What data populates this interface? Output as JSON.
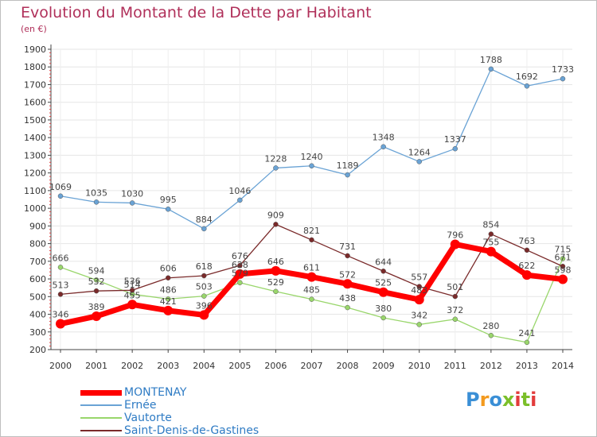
{
  "title": "Evolution du Montant de la Dette par Habitant",
  "subtitle": "(en €)",
  "brand": {
    "letters": [
      "P",
      "r",
      "o",
      "x",
      "i",
      "t",
      "i"
    ],
    "colors": [
      "#3a8fd6",
      "#f39a1e",
      "#3a8fd6",
      "#7bbf2a",
      "#e23b3b",
      "#7bbf2a",
      "#e23b3b"
    ]
  },
  "chart_data": {
    "type": "line",
    "title": "Evolution du Montant de la Dette par Habitant",
    "ylabel": "(en €)",
    "xlabel": "",
    "x": [
      "2000",
      "2001",
      "2002",
      "2003",
      "2004",
      "2005",
      "2006",
      "2007",
      "2008",
      "2009",
      "2010",
      "2011",
      "2012",
      "2013",
      "2014"
    ],
    "ylim": [
      200,
      1900
    ],
    "yticks": [
      "200",
      "300",
      "400",
      "500",
      "600",
      "700",
      "800",
      "900",
      "1000",
      "1100",
      "1200",
      "1300",
      "1400",
      "1500",
      "1600",
      "1700",
      "1800",
      "1900"
    ],
    "grid": true,
    "legend_position": "bottom-left",
    "series": [
      {
        "name": "MONTENAY",
        "color": "#ff0000",
        "values": [
          346,
          389,
          455,
          421,
          396,
          628,
          646,
          611,
          572,
          525,
          483,
          796,
          755,
          622,
          598
        ]
      },
      {
        "name": "Ernée",
        "color": "#6aa3d5",
        "values": [
          1069,
          1035,
          1030,
          995,
          884,
          1046,
          1228,
          1240,
          1189,
          1348,
          1264,
          1337,
          1788,
          1692,
          1733
        ]
      },
      {
        "name": "Vautorte",
        "color": "#99d66b",
        "values": [
          666,
          594,
          514,
          486,
          503,
          579,
          529,
          485,
          438,
          380,
          342,
          372,
          280,
          241,
          715
        ]
      },
      {
        "name": "Saint-Denis-de-Gastines",
        "color": "#7a2a2a",
        "values": [
          513,
          532,
          536,
          606,
          618,
          676,
          909,
          821,
          731,
          644,
          557,
          501,
          854,
          763,
          671
        ]
      }
    ]
  }
}
